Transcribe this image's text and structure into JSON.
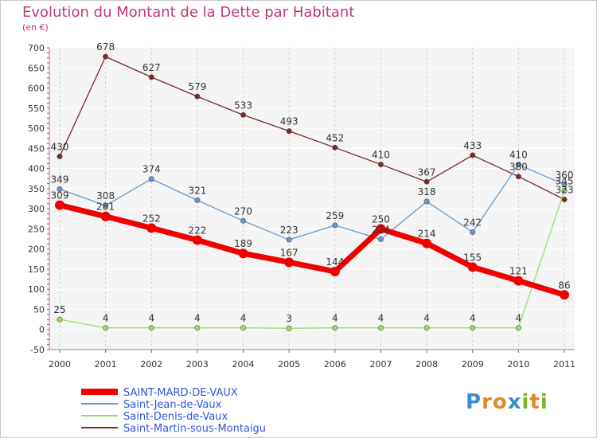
{
  "title": "Evolution du Montant de la Dette par Habitant",
  "subtitle": "(en €)",
  "logo_text": "Proxiti",
  "chart_data": {
    "type": "line",
    "title": "Evolution du Montant de la Dette par Habitant",
    "ylabel": "(en €)",
    "ylim": [
      -50,
      700
    ],
    "yticks": [
      -50,
      0,
      50,
      100,
      150,
      200,
      250,
      300,
      350,
      400,
      450,
      500,
      550,
      600,
      650,
      700
    ],
    "grid": true,
    "legend_position": "bottom-left",
    "x": [
      "2000",
      "2001",
      "2002",
      "2003",
      "2004",
      "2005",
      "2006",
      "2007",
      "2008",
      "2009",
      "2010",
      "2011"
    ],
    "series": [
      {
        "name": "SAINT-MARD-DE-VAUX",
        "color": "#ee0000",
        "values": [
          309,
          281,
          252,
          222,
          189,
          167,
          144,
          250,
          214,
          155,
          121,
          86
        ]
      },
      {
        "name": "Saint-Jean-de-Vaux",
        "color": "#6699cc",
        "values": [
          349,
          308,
          374,
          321,
          270,
          223,
          259,
          224,
          318,
          242,
          410,
          360
        ]
      },
      {
        "name": "Saint-Denis-de-Vaux",
        "color": "#99dd66",
        "values": [
          25,
          4,
          4,
          4,
          4,
          3,
          4,
          4,
          4,
          4,
          4,
          345
        ]
      },
      {
        "name": "Saint-Martin-sous-Montaigu",
        "color": "#7a2a2a",
        "values": [
          430,
          678,
          627,
          579,
          533,
          493,
          452,
          410,
          367,
          433,
          380,
          323
        ]
      }
    ],
    "data_labels": [
      [
        "309",
        "281",
        "252",
        "222",
        "189",
        "167",
        "144",
        "250",
        "214",
        "155",
        "121",
        "86"
      ],
      [
        "349",
        "308",
        "374",
        "321",
        "270",
        "223",
        "259",
        "224",
        "318",
        "242",
        "410",
        "360"
      ],
      [
        "25",
        "4",
        "4",
        "4",
        "4",
        "3",
        "4",
        "4",
        "4",
        "4",
        "4",
        "345"
      ],
      [
        "430",
        "678",
        "627",
        "579",
        "533",
        "493",
        "452",
        "410",
        "367",
        "433",
        "380",
        "323"
      ]
    ]
  }
}
